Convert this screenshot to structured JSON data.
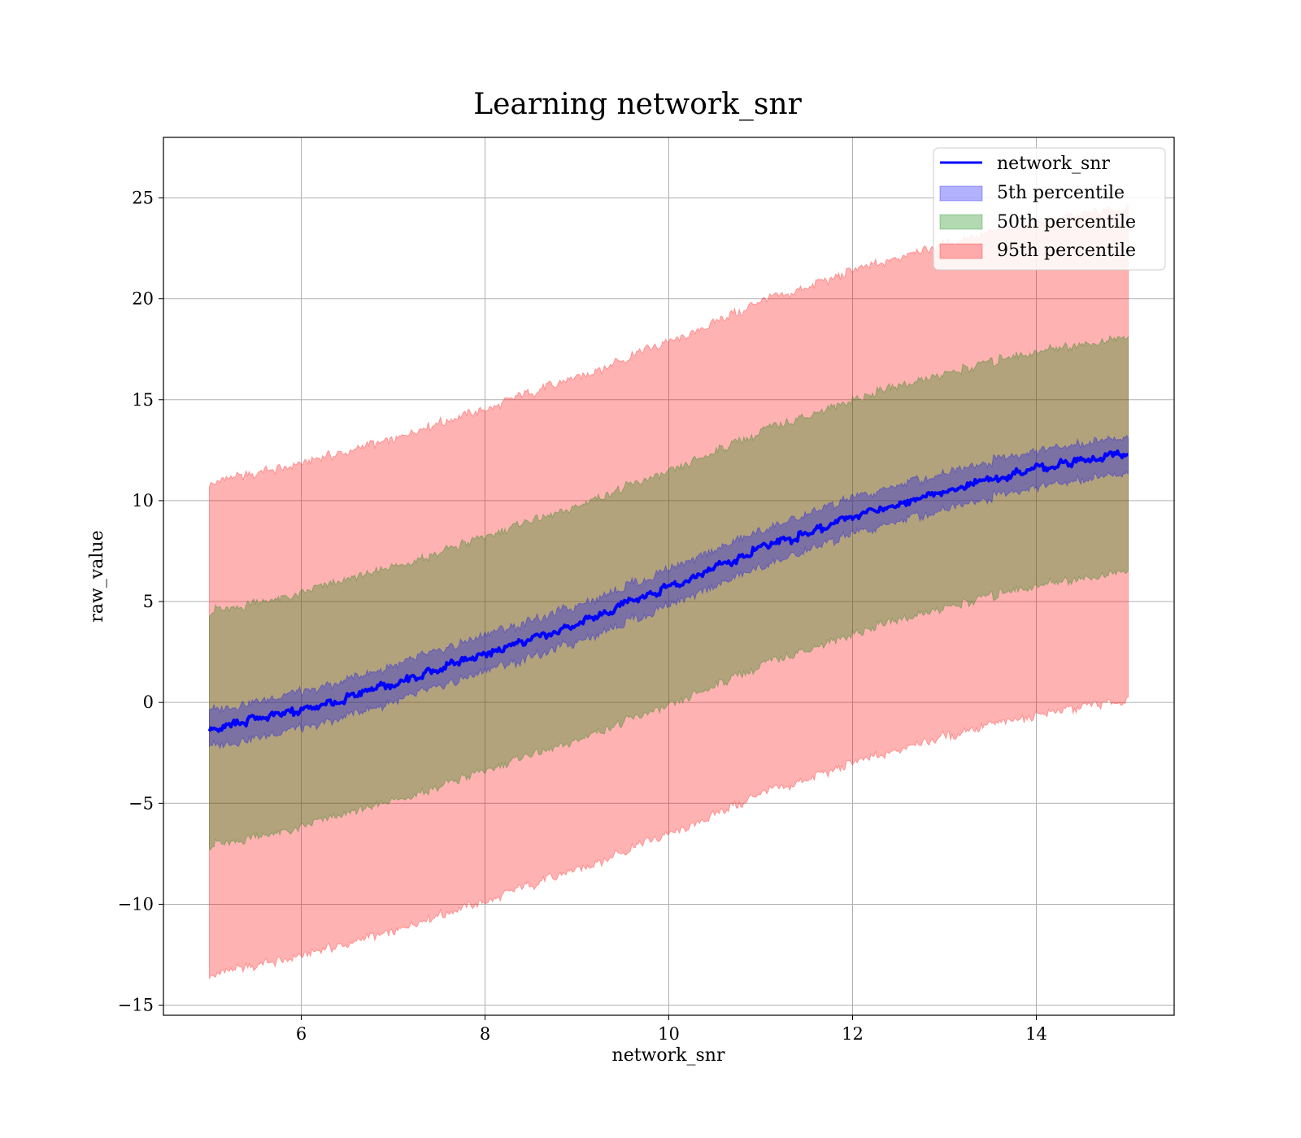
{
  "chart_data": {
    "type": "area",
    "title": "Learning network_snr",
    "xlabel": "network_snr",
    "ylabel": "raw_value",
    "xlim": [
      4.5,
      15.5
    ],
    "ylim": [
      -15.5,
      28
    ],
    "xticks": [
      6,
      8,
      10,
      12,
      14
    ],
    "yticks": [
      -15,
      -10,
      -5,
      0,
      5,
      10,
      15,
      20,
      25
    ],
    "xtick_labels": [
      "6",
      "8",
      "10",
      "12",
      "14"
    ],
    "ytick_labels": [
      "−15",
      "−10",
      "−5",
      "0",
      "5",
      "10",
      "15",
      "20",
      "25"
    ],
    "grid": true,
    "legend_position": "top-right",
    "x": [
      5,
      6,
      7,
      8,
      9,
      10,
      11,
      12,
      13,
      14,
      15
    ],
    "series": [
      {
        "name": "network_snr",
        "kind": "line",
        "color": "#0000ff",
        "values": [
          -1.3,
          -0.4,
          0.9,
          2.4,
          3.9,
          5.7,
          7.6,
          9.2,
          10.5,
          11.6,
          12.3
        ]
      },
      {
        "name": "5th percentile",
        "kind": "band",
        "color": "#0000ff",
        "lower": [
          -2.2,
          -1.3,
          0.0,
          1.5,
          3.0,
          4.8,
          6.7,
          8.3,
          9.6,
          10.7,
          11.4
        ],
        "upper": [
          -0.4,
          0.5,
          1.8,
          3.3,
          4.8,
          6.6,
          8.5,
          10.1,
          11.4,
          12.5,
          13.2
        ]
      },
      {
        "name": "50th percentile",
        "kind": "band",
        "color": "#008000",
        "lower": [
          -7.1,
          -6.2,
          -4.9,
          -3.4,
          -1.9,
          -0.1,
          1.8,
          3.4,
          4.7,
          5.8,
          6.5
        ],
        "upper": [
          4.5,
          5.4,
          6.7,
          8.2,
          9.7,
          11.5,
          13.4,
          15.0,
          16.3,
          17.4,
          18.1
        ]
      },
      {
        "name": "95th percentile",
        "kind": "band",
        "color": "#ff0000",
        "lower": [
          -13.5,
          -12.6,
          -11.3,
          -9.8,
          -8.3,
          -6.5,
          -4.6,
          -3.0,
          -1.7,
          -0.6,
          0.1
        ],
        "upper": [
          10.9,
          11.8,
          13.1,
          14.6,
          16.1,
          17.9,
          19.8,
          21.4,
          22.7,
          23.8,
          24.5
        ]
      }
    ]
  }
}
